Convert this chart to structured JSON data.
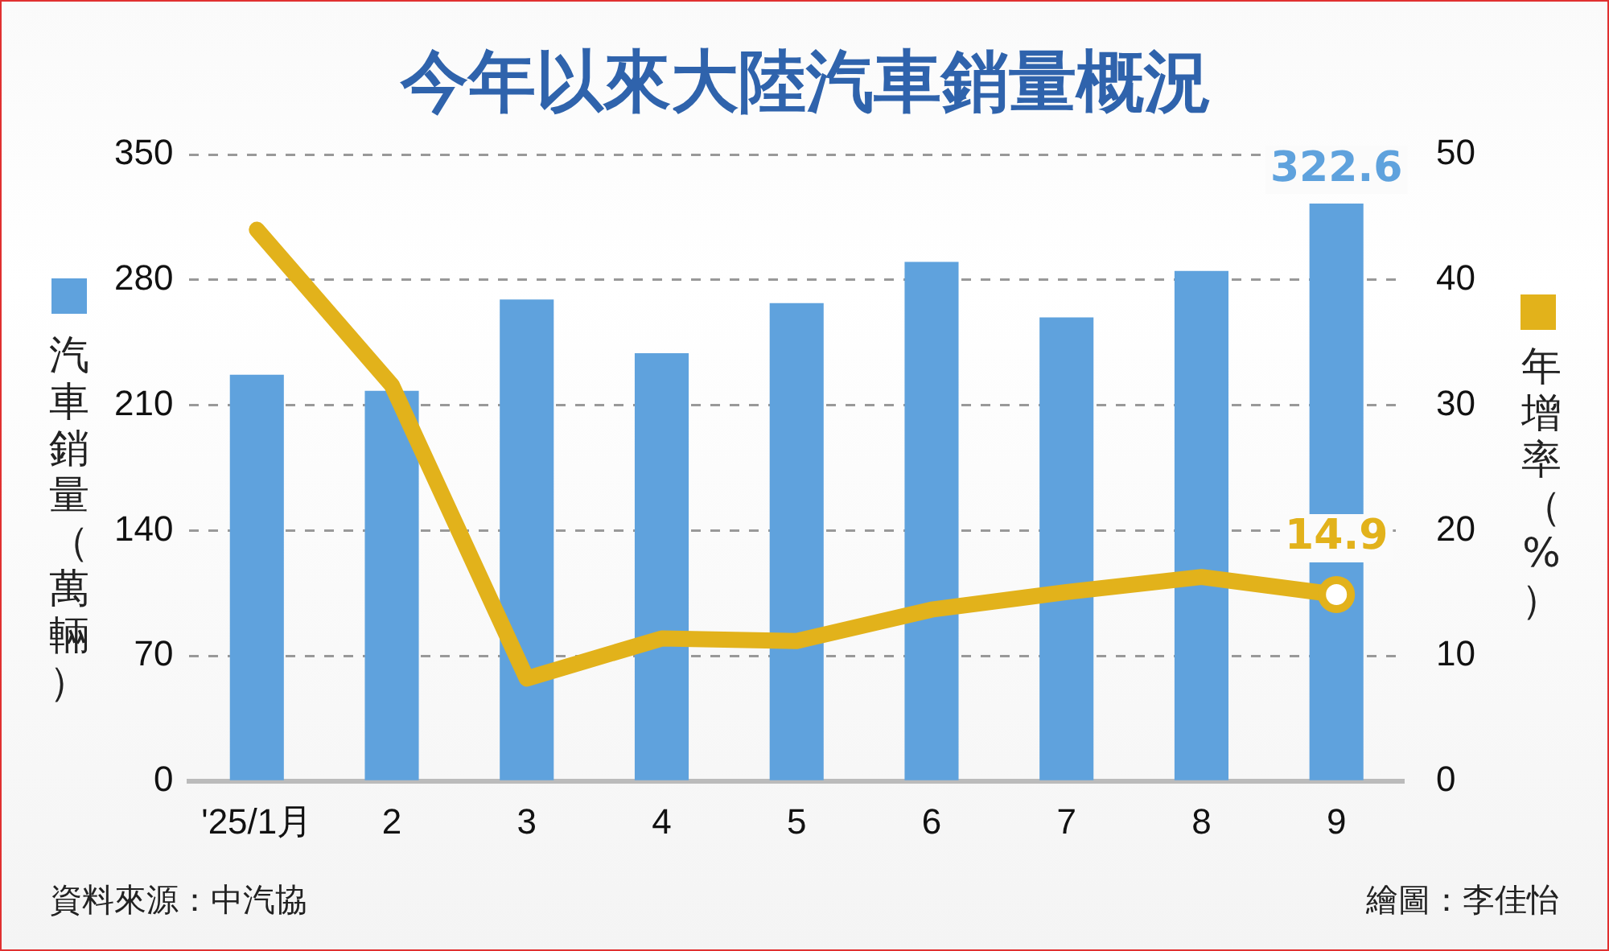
{
  "chart_data": {
    "type": "bar",
    "title": "今年以來大陸汽車銷量概況",
    "categories": [
      "'25/1月",
      "2",
      "3",
      "4",
      "5",
      "6",
      "7",
      "8",
      "9"
    ],
    "series": [
      {
        "color": "#5fa2dd",
        "values": [
          227,
          218,
          269,
          239,
          267,
          290,
          259,
          285,
          322.6
        ],
        "value_labels": [
          null,
          null,
          null,
          null,
          null,
          null,
          null,
          null,
          "322.6"
        ]
      },
      {
        "type": "line",
        "axis": "y2",
        "color": "#e2b21b",
        "values": [
          44.0,
          31.6,
          8.2,
          11.4,
          11.2,
          13.7,
          15.1,
          16.3,
          14.9
        ],
        "value_labels": [
          null,
          null,
          null,
          null,
          null,
          null,
          null,
          null,
          "14.9"
        ]
      }
    ],
    "ylabel": "汽車銷量（萬輛）",
    "y2label": "年增率（%）",
    "ylim": [
      0,
      350
    ],
    "yticks": [
      0,
      70,
      140,
      210,
      280,
      350
    ],
    "y2lim": [
      0,
      50
    ],
    "y2ticks": [
      0,
      10,
      20,
      30,
      40,
      50
    ],
    "grid": "y",
    "legend": false,
    "annotations": [
      "資料來源：中汽協",
      "繪圖：李佳怡"
    ]
  }
}
